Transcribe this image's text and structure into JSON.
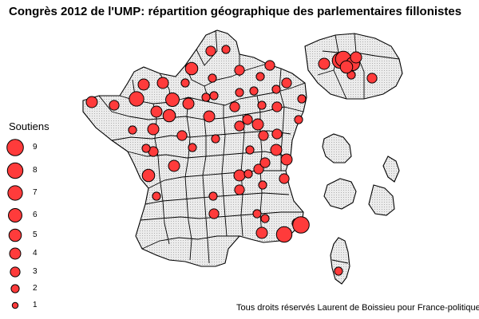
{
  "title": "Congrès 2012 de l'UMP: répartition géographique des parlementaires fillonistes",
  "legend": {
    "title": "Soutiens",
    "items": [
      {
        "label": "9",
        "value": 9
      },
      {
        "label": "8",
        "value": 8
      },
      {
        "label": "7",
        "value": 7
      },
      {
        "label": "6",
        "value": 6
      },
      {
        "label": "5",
        "value": 5
      },
      {
        "label": "4",
        "value": 4
      },
      {
        "label": "3",
        "value": 3
      },
      {
        "label": "2",
        "value": 2
      },
      {
        "label": "1",
        "value": 1
      }
    ]
  },
  "credit": "Tous droits réservés Laurent de Boissieu pour France-politique.fr",
  "colors": {
    "bubble": "#ff3b3b",
    "land": "#ececec",
    "border": "#000000"
  },
  "bubble_values": [
    3,
    2,
    5,
    2,
    2,
    3,
    2,
    3,
    3,
    2,
    2,
    2,
    4,
    4,
    7,
    3,
    4,
    4,
    6,
    4,
    4,
    2,
    2,
    2,
    2,
    2,
    3,
    3,
    3,
    2,
    4,
    5,
    3,
    2,
    2,
    3,
    4,
    3,
    4,
    3,
    2,
    3,
    2,
    5,
    4,
    4,
    3,
    2,
    3,
    4,
    3,
    2,
    2,
    3,
    2,
    3,
    2,
    4,
    8,
    3,
    9,
    2,
    2,
    4,
    8,
    8,
    6,
    4,
    5,
    3,
    2
  ]
}
